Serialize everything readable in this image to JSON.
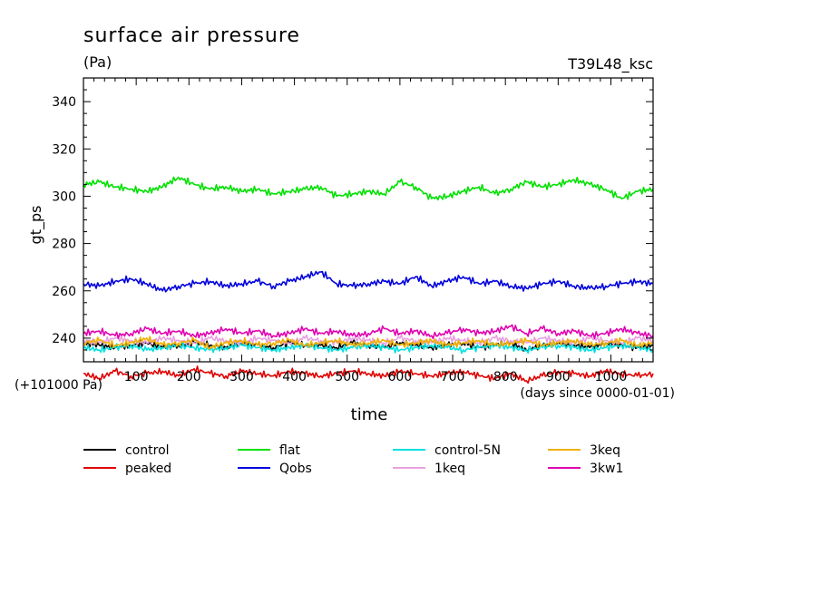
{
  "chart_data": {
    "type": "line",
    "title": "surface air pressure",
    "units": "(Pa)",
    "experiment": "T39L48_ksc",
    "xlabel": "time",
    "ylabel": "gt_ps",
    "x_offset_label": "(days since 0000-01-01)",
    "y_offset_label": "(+101000 Pa)",
    "xlim": [
      0,
      1080
    ],
    "ylim": [
      230,
      350
    ],
    "xticks": [
      "100",
      "200",
      "300",
      "400",
      "500",
      "600",
      "700",
      "800",
      "900",
      "1000"
    ],
    "xtick_values": [
      100,
      200,
      300,
      400,
      500,
      600,
      700,
      800,
      900,
      1000
    ],
    "yticks": [
      "240",
      "260",
      "280",
      "300",
      "320",
      "340"
    ],
    "ytick_values": [
      240,
      260,
      280,
      300,
      320,
      340
    ],
    "x": [
      0,
      30,
      60,
      90,
      120,
      150,
      180,
      210,
      240,
      270,
      300,
      330,
      360,
      390,
      420,
      450,
      480,
      510,
      540,
      570,
      600,
      630,
      660,
      690,
      720,
      750,
      780,
      810,
      840,
      870,
      900,
      930,
      960,
      990,
      1020,
      1050,
      1080
    ],
    "series": [
      {
        "name": "control",
        "color": "#000000",
        "values": [
          238,
          237,
          236,
          237,
          238,
          236,
          237,
          238,
          237,
          236,
          238,
          237,
          236,
          238,
          237,
          237,
          236,
          238,
          237,
          236,
          238,
          237,
          236,
          237,
          238,
          236,
          237,
          238,
          235,
          237,
          238,
          237,
          236,
          238,
          237,
          236,
          237
        ]
      },
      {
        "name": "peaked",
        "color": "#e00000",
        "values": [
          225,
          223,
          226,
          224,
          225,
          226,
          224,
          227,
          225,
          224,
          226,
          225,
          224,
          226,
          225,
          224,
          225,
          226,
          225,
          224,
          226,
          225,
          224,
          225,
          226,
          224,
          223,
          225,
          222,
          224,
          226,
          225,
          224,
          226,
          225,
          224,
          225
        ]
      },
      {
        "name": "flat",
        "color": "#00e000",
        "values": [
          305,
          306,
          304,
          303,
          302,
          304,
          308,
          305,
          303,
          304,
          302,
          303,
          301,
          302,
          303,
          304,
          300,
          301,
          302,
          301,
          306,
          304,
          299,
          300,
          302,
          304,
          301,
          303,
          306,
          304,
          305,
          307,
          305,
          303,
          299,
          302,
          303
        ]
      },
      {
        "name": "Qobs",
        "color": "#0000dd",
        "values": [
          263,
          262,
          264,
          265,
          263,
          260,
          262,
          263,
          264,
          262,
          263,
          264,
          262,
          264,
          266,
          268,
          263,
          262,
          263,
          264,
          263,
          266,
          262,
          264,
          266,
          263,
          264,
          262,
          261,
          263,
          264,
          262,
          261,
          262,
          263,
          264,
          263
        ]
      },
      {
        "name": "control-5N",
        "color": "#00e0e0",
        "values": [
          236,
          235,
          236,
          237,
          235,
          236,
          237,
          236,
          235,
          236,
          237,
          236,
          235,
          236,
          237,
          236,
          235,
          236,
          237,
          236,
          235,
          236,
          237,
          236,
          235,
          236,
          237,
          236,
          235,
          236,
          237,
          236,
          235,
          236,
          237,
          236,
          235
        ]
      },
      {
        "name": "1keq",
        "color": "#e8a0e0",
        "values": [
          239,
          238,
          240,
          239,
          238,
          240,
          239,
          238,
          240,
          239,
          238,
          240,
          239,
          238,
          240,
          239,
          238,
          240,
          239,
          238,
          240,
          239,
          238,
          240,
          239,
          238,
          240,
          239,
          238,
          240,
          239,
          238,
          240,
          239,
          238,
          240,
          239
        ]
      },
      {
        "name": "3keq",
        "color": "#f0b000",
        "values": [
          238,
          239,
          237,
          238,
          240,
          237,
          238,
          239,
          236,
          238,
          239,
          237,
          238,
          239,
          237,
          238,
          239,
          237,
          238,
          239,
          237,
          238,
          239,
          237,
          238,
          239,
          237,
          238,
          239,
          237,
          238,
          239,
          237,
          238,
          239,
          237,
          238
        ]
      },
      {
        "name": "3kw1",
        "color": "#e000b0",
        "values": [
          242,
          243,
          241,
          242,
          244,
          242,
          243,
          241,
          242,
          244,
          242,
          243,
          241,
          242,
          244,
          242,
          243,
          241,
          242,
          244,
          242,
          243,
          241,
          242,
          244,
          242,
          243,
          245,
          242,
          244,
          242,
          243,
          241,
          242,
          244,
          242,
          241
        ]
      }
    ],
    "grid": false,
    "legend_position": "bottom"
  }
}
